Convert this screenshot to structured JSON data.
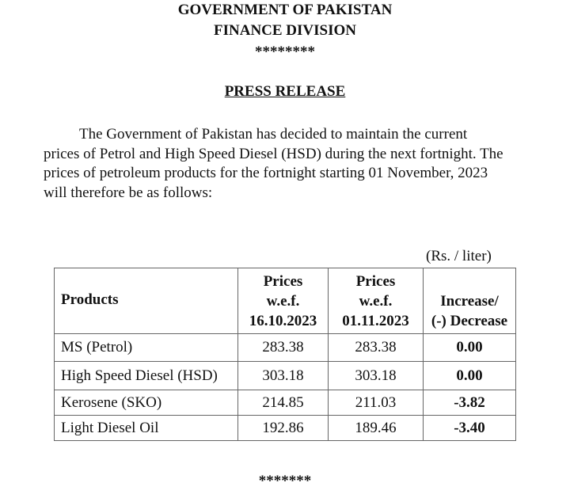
{
  "header": {
    "line1": "GOVERNMENT OF PAKISTAN",
    "line2": "FINANCE DIVISION",
    "stars": "********"
  },
  "title": "PRESS RELEASE",
  "paragraph": [
    "The Government of Pakistan has decided to maintain the current",
    "prices of Petrol and High Speed Diesel (HSD) during the next fortnight. The",
    "prices of petroleum products for the fortnight starting 01 November, 2023",
    "will therefore be as follows:"
  ],
  "unit": "(Rs. / liter)",
  "table": {
    "headers": [
      "Products",
      [
        "Prices",
        "w.e.f.",
        "16.10.2023"
      ],
      [
        "Prices",
        "w.e.f.",
        "01.11.2023"
      ],
      [
        "Increase/",
        "(-) Decrease"
      ]
    ],
    "rows": [
      [
        "MS (Petrol)",
        "283.38",
        "283.38",
        "0.00"
      ],
      [
        "High Speed Diesel (HSD)",
        "303.18",
        "303.18",
        "0.00"
      ],
      [
        "Kerosene (SKO)",
        "214.85",
        "211.03",
        "-3.82"
      ],
      [
        "Light Diesel Oil",
        "192.86",
        "189.46",
        "-3.40"
      ]
    ]
  },
  "footer_stars": "*******"
}
